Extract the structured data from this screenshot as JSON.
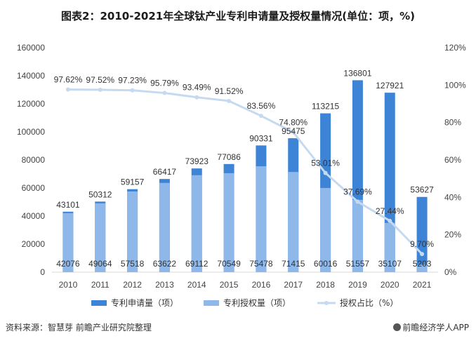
{
  "chart_data": {
    "type": "bar",
    "title": "图表2：2010-2021年全球钛产业专利申请量及授权量情况(单位：项，%)",
    "categories": [
      "2010",
      "2011",
      "2012",
      "2013",
      "2014",
      "2015",
      "2016",
      "2017",
      "2018",
      "2019",
      "2020",
      "2021"
    ],
    "series": [
      {
        "name": "专利申请量（项）",
        "type": "bar",
        "color": "#3d84d6",
        "values": [
          43101,
          50312,
          59157,
          66417,
          73923,
          77086,
          90331,
          95475,
          113215,
          136801,
          127921,
          53627
        ]
      },
      {
        "name": "专利授权量（项）",
        "type": "bar",
        "color": "#8fb8ea",
        "values": [
          42076,
          49064,
          57518,
          63622,
          69112,
          70549,
          75478,
          71415,
          60016,
          51557,
          35107,
          5203
        ]
      },
      {
        "name": "授权占比（%）",
        "type": "line",
        "axis": "right",
        "color": "#c5d9f1",
        "values": [
          97.62,
          97.52,
          97.23,
          95.79,
          93.49,
          91.52,
          83.56,
          74.8,
          53.01,
          37.69,
          27.44,
          9.7
        ]
      }
    ],
    "left_axis": {
      "ylim": [
        0,
        160000
      ],
      "ticks": [
        "0",
        "20000",
        "40000",
        "60000",
        "80000",
        "100000",
        "120000",
        "140000",
        "160000"
      ]
    },
    "right_axis": {
      "ylim": [
        0,
        120
      ],
      "ticks": [
        "0%",
        "20%",
        "40%",
        "60%",
        "80%",
        "100%",
        "120%"
      ]
    },
    "bar_labels": [
      "43101",
      "50312",
      "59157",
      "66417",
      "73923",
      "77086",
      "90331",
      "95475",
      "113215",
      "136801",
      "127921",
      "53627"
    ],
    "grant_labels": [
      "42076",
      "49064",
      "57518",
      "63622",
      "69112",
      "70549",
      "75478",
      "71415",
      "60016",
      "51557",
      "35107",
      "5203"
    ],
    "pct_labels": [
      "97.62%",
      "97.52%",
      "97.23%",
      "95.79%",
      "93.49%",
      "91.52%",
      "83.56%",
      "74.80%",
      "53.01%",
      "37.69%",
      "27.44%",
      "9.70%"
    ],
    "legend": [
      "专利申请量（项）",
      "专利授权量（项）",
      "授权占比（%）"
    ],
    "legend_position": "bottom"
  },
  "footer": {
    "source": "资料来源：智慧芽 前瞻产业研究院整理",
    "brand": "前瞻经济学人APP"
  }
}
